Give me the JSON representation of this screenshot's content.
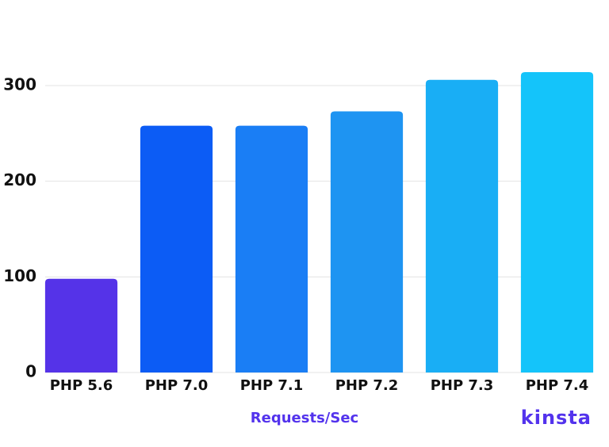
{
  "chart_data": {
    "type": "bar",
    "categories": [
      "PHP 5.6",
      "PHP 7.0",
      "PHP 7.1",
      "PHP 7.2",
      "PHP 7.3",
      "PHP 7.4"
    ],
    "values": [
      98,
      258,
      258,
      273,
      306,
      314
    ],
    "colors": [
      "#5533e8",
      "#0c5cf5",
      "#1a7ef5",
      "#1e94f2",
      "#19aef5",
      "#14c4fa"
    ],
    "ylim": [
      0,
      320
    ],
    "yticks": [
      0,
      100,
      200,
      300
    ],
    "grid": true,
    "x_label": "Requests/Sec",
    "logo": "kinsta"
  }
}
